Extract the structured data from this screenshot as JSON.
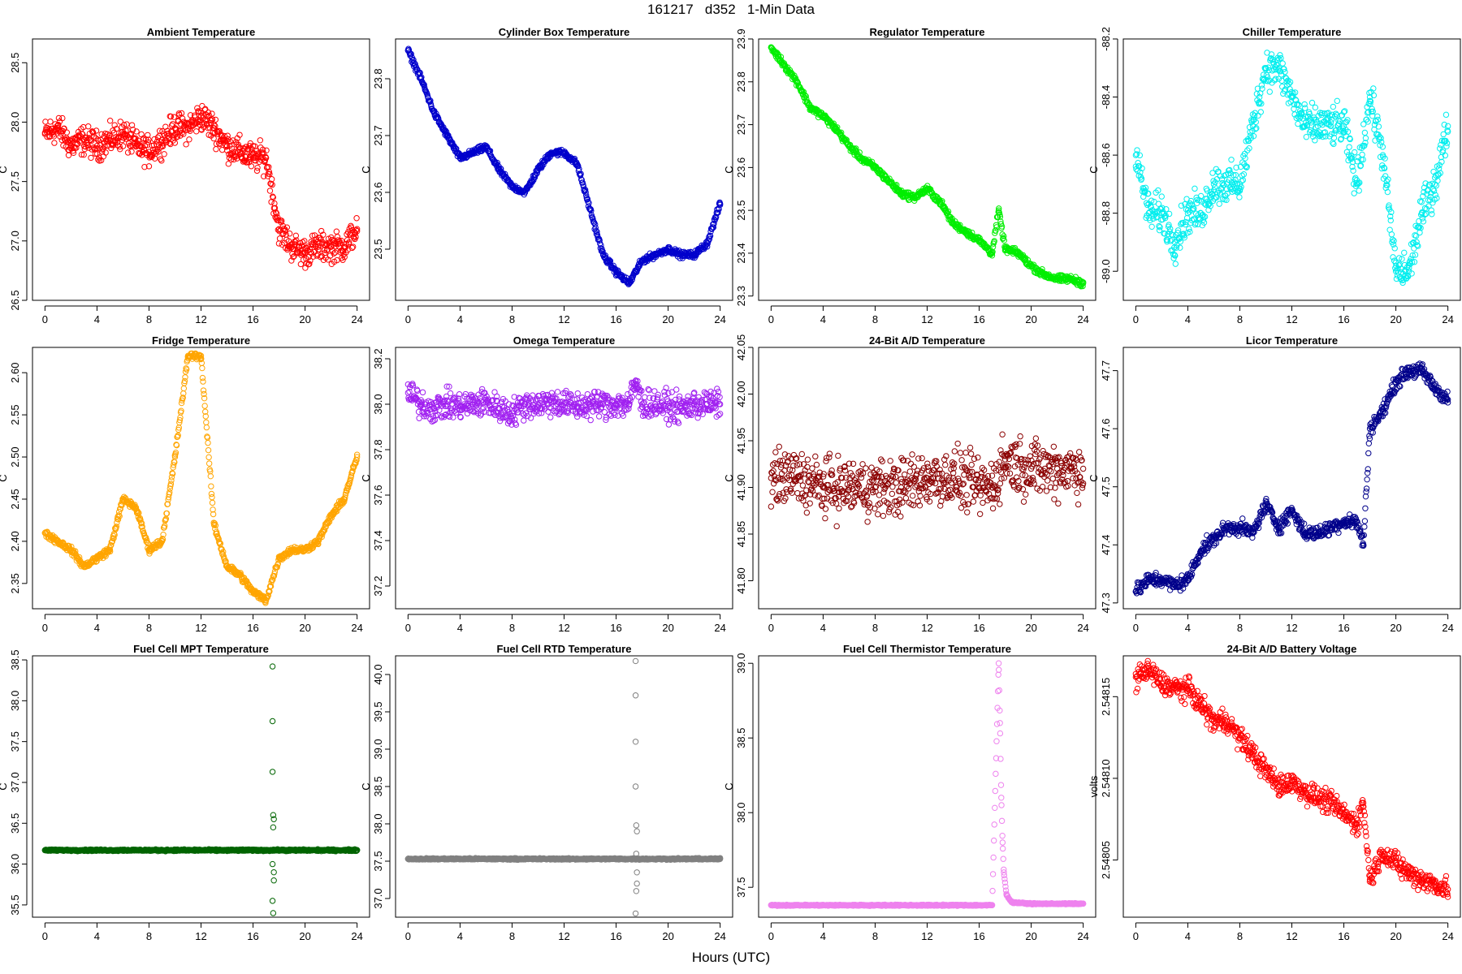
{
  "title": "161217   d352   1-Min Data",
  "common_xlabel": "Hours (UTC)",
  "chart_data": [
    {
      "type": "scatter",
      "title": "Ambient Temperature",
      "ylabel": "C",
      "color": "#ff0000",
      "xlim": [
        0,
        24
      ],
      "xticks": [
        0,
        4,
        8,
        12,
        16,
        20,
        24
      ],
      "ylim": [
        26.5,
        28.7
      ],
      "yticks": [
        26.5,
        27.0,
        27.5,
        28.0,
        28.5
      ],
      "ytick_labels": [
        "26.5",
        "27.0",
        "27.5",
        "28.0",
        "28.5"
      ],
      "x": [
        0,
        1,
        2,
        3,
        4,
        5,
        6,
        7,
        8,
        9,
        10,
        11,
        12,
        13,
        14,
        15,
        16,
        17,
        18,
        19,
        20,
        21,
        22,
        23,
        24
      ],
      "y": [
        27.9,
        27.95,
        27.8,
        27.85,
        27.8,
        27.85,
        27.9,
        27.8,
        27.75,
        27.85,
        27.95,
        27.95,
        28.05,
        27.95,
        27.8,
        27.75,
        27.7,
        27.7,
        27.1,
        26.95,
        26.9,
        26.95,
        26.95,
        26.95,
        27.1
      ],
      "spread": 0.18
    },
    {
      "type": "scatter",
      "title": "Cylinder Box Temperature",
      "ylabel": "C",
      "color": "#0000cc",
      "xlim": [
        0,
        24
      ],
      "xticks": [
        0,
        4,
        8,
        12,
        16,
        20,
        24
      ],
      "ylim": [
        23.41,
        23.87
      ],
      "yticks": [
        23.5,
        23.6,
        23.7,
        23.8
      ],
      "ytick_labels": [
        "23.5",
        "23.6",
        "23.7",
        "23.8"
      ],
      "x": [
        0,
        1,
        2,
        3,
        4,
        5,
        6,
        7,
        8,
        9,
        10,
        11,
        12,
        13,
        14,
        15,
        16,
        17,
        18,
        19,
        20,
        21,
        22,
        23,
        24
      ],
      "y": [
        23.85,
        23.8,
        23.74,
        23.7,
        23.66,
        23.67,
        23.68,
        23.64,
        23.61,
        23.6,
        23.64,
        23.67,
        23.67,
        23.65,
        23.57,
        23.49,
        23.46,
        23.44,
        23.48,
        23.49,
        23.5,
        23.49,
        23.49,
        23.51,
        23.58
      ],
      "spread": 0.008
    },
    {
      "type": "scatter",
      "title": "Regulator Temperature",
      "ylabel": "C",
      "color": "#00ee00",
      "xlim": [
        0,
        24
      ],
      "xticks": [
        0,
        4,
        8,
        12,
        16,
        20,
        24
      ],
      "ylim": [
        23.29,
        23.9
      ],
      "yticks": [
        23.3,
        23.4,
        23.5,
        23.6,
        23.7,
        23.8,
        23.9
      ],
      "ytick_labels": [
        "23.3",
        "23.4",
        "23.5",
        "23.6",
        "23.7",
        "23.8",
        "23.9"
      ],
      "x": [
        0,
        1,
        2,
        3,
        4,
        5,
        6,
        7,
        8,
        9,
        10,
        11,
        12,
        13,
        14,
        15,
        16,
        17,
        17.5,
        18,
        19,
        20,
        21,
        22,
        23,
        24
      ],
      "y": [
        23.88,
        23.84,
        23.8,
        23.74,
        23.72,
        23.69,
        23.65,
        23.62,
        23.6,
        23.57,
        23.54,
        23.53,
        23.55,
        23.52,
        23.47,
        23.45,
        23.43,
        23.4,
        23.5,
        23.41,
        23.4,
        23.37,
        23.35,
        23.34,
        23.34,
        23.33
      ],
      "spread": 0.012
    },
    {
      "type": "scatter",
      "title": "Chiller Temperature",
      "ylabel": "C",
      "color": "#00eeee",
      "xlim": [
        0,
        24
      ],
      "xticks": [
        0,
        4,
        8,
        12,
        16,
        20,
        24
      ],
      "ylim": [
        -89.1,
        -88.2
      ],
      "yticks": [
        -89.0,
        -88.8,
        -88.6,
        -88.4,
        -88.2
      ],
      "ytick_labels": [
        "-89.0",
        "-88.8",
        "-88.6",
        "-88.4",
        "-88.2"
      ],
      "x": [
        0,
        1,
        2,
        3,
        4,
        5,
        6,
        7,
        8,
        9,
        10,
        11,
        12,
        13,
        14,
        15,
        16,
        17,
        18,
        19,
        20,
        21,
        22,
        23,
        24
      ],
      "y": [
        -88.6,
        -88.8,
        -88.8,
        -88.9,
        -88.8,
        -88.8,
        -88.7,
        -88.7,
        -88.7,
        -88.5,
        -88.3,
        -88.3,
        -88.4,
        -88.5,
        -88.5,
        -88.5,
        -88.5,
        -88.7,
        -88.4,
        -88.6,
        -89.0,
        -89.0,
        -88.8,
        -88.7,
        -88.5
      ],
      "spread": 0.1
    },
    {
      "type": "scatter",
      "title": "Fridge Temperature",
      "ylabel": "C",
      "color": "#ffa500",
      "xlim": [
        0,
        24
      ],
      "xticks": [
        0,
        4,
        8,
        12,
        16,
        20,
        24
      ],
      "ylim": [
        2.32,
        2.63
      ],
      "yticks": [
        2.35,
        2.4,
        2.45,
        2.5,
        2.55,
        2.6
      ],
      "ytick_labels": [
        "2.35",
        "2.40",
        "2.45",
        "2.50",
        "2.55",
        "2.60"
      ],
      "x": [
        0,
        1,
        2,
        3,
        4,
        5,
        6,
        7,
        8,
        9,
        10,
        11,
        12,
        13,
        14,
        15,
        16,
        17,
        18,
        19,
        20,
        21,
        22,
        23,
        24
      ],
      "y": [
        2.41,
        2.4,
        2.39,
        2.37,
        2.38,
        2.39,
        2.45,
        2.44,
        2.39,
        2.4,
        2.5,
        2.62,
        2.62,
        2.42,
        2.37,
        2.36,
        2.34,
        2.33,
        2.38,
        2.39,
        2.39,
        2.4,
        2.43,
        2.45,
        2.5
      ],
      "spread": 0.006
    },
    {
      "type": "scatter",
      "title": "Omega Temperature",
      "ylabel": "C",
      "color": "#a020f0",
      "xlim": [
        0,
        24
      ],
      "xticks": [
        0,
        4,
        8,
        12,
        16,
        20,
        24
      ],
      "ylim": [
        37.1,
        38.25
      ],
      "yticks": [
        37.2,
        37.4,
        37.6,
        37.8,
        38.0,
        38.2
      ],
      "ytick_labels": [
        "37.2",
        "37.4",
        "37.6",
        "37.8",
        "38.0",
        "38.2"
      ],
      "x": [
        0,
        1,
        2,
        3,
        4,
        5,
        6,
        7,
        8,
        9,
        10,
        11,
        12,
        13,
        14,
        15,
        16,
        17,
        17.5,
        18,
        19,
        20,
        21,
        22,
        23,
        24
      ],
      "y": [
        38.05,
        38.0,
        37.98,
        38.0,
        37.99,
        38.0,
        38.01,
        37.98,
        37.96,
        38.0,
        38.0,
        38.01,
        38.0,
        37.99,
        38.0,
        38.0,
        38.0,
        38.0,
        38.1,
        38.0,
        38.0,
        37.99,
        37.98,
        38.0,
        38.0,
        38.0
      ],
      "spread": 0.09
    },
    {
      "type": "scatter",
      "title": "24-Bit A/D Temperature",
      "ylabel": "C",
      "color": "#8b0000",
      "xlim": [
        0,
        24
      ],
      "xticks": [
        0,
        4,
        8,
        12,
        16,
        20,
        24
      ],
      "ylim": [
        41.77,
        42.05
      ],
      "yticks": [
        41.8,
        41.85,
        41.9,
        41.95,
        42.0,
        42.05
      ],
      "ytick_labels": [
        "41.80",
        "41.85",
        "41.90",
        "41.95",
        "42.00",
        "42.05"
      ],
      "x": [
        0,
        2,
        4,
        6,
        8,
        10,
        12,
        14,
        16,
        17,
        18,
        20,
        22,
        24
      ],
      "y": [
        41.91,
        41.91,
        41.9,
        41.9,
        41.9,
        41.9,
        41.91,
        41.91,
        41.9,
        41.9,
        41.93,
        41.92,
        41.92,
        41.92
      ],
      "spread": 0.045
    },
    {
      "type": "scatter",
      "title": "Licor Temperature",
      "ylabel": "C",
      "color": "#00008b",
      "xlim": [
        0,
        24
      ],
      "xticks": [
        0,
        4,
        8,
        12,
        16,
        20,
        24
      ],
      "ylim": [
        47.29,
        47.74
      ],
      "yticks": [
        47.3,
        47.4,
        47.5,
        47.6,
        47.7
      ],
      "ytick_labels": [
        "47.3",
        "47.4",
        "47.5",
        "47.6",
        "47.7"
      ],
      "x": [
        0,
        1,
        2,
        3,
        4,
        5,
        6,
        7,
        8,
        9,
        10,
        11,
        12,
        13,
        14,
        15,
        16,
        17,
        17.5,
        18,
        19,
        20,
        21,
        22,
        23,
        24
      ],
      "y": [
        47.32,
        47.34,
        47.34,
        47.33,
        47.34,
        47.39,
        47.41,
        47.43,
        47.43,
        47.42,
        47.47,
        47.43,
        47.46,
        47.42,
        47.42,
        47.43,
        47.44,
        47.44,
        47.4,
        47.6,
        47.63,
        47.68,
        47.7,
        47.7,
        47.67,
        47.65
      ],
      "spread": 0.018
    },
    {
      "type": "scatter",
      "title": "Fuel Cell MPT Temperature",
      "ylabel": "C",
      "color": "#006400",
      "xlim": [
        0,
        24
      ],
      "xticks": [
        0,
        4,
        8,
        12,
        16,
        20,
        24
      ],
      "ylim": [
        35.35,
        38.55
      ],
      "yticks": [
        35.5,
        36.0,
        36.5,
        37.0,
        37.5,
        38.0,
        38.5
      ],
      "ytick_labels": [
        "35.5",
        "36.0",
        "36.5",
        "37.0",
        "37.5",
        "38.0",
        "38.5"
      ],
      "x": [
        0,
        2,
        4,
        6,
        8,
        10,
        12,
        14,
        16,
        17,
        17.4,
        17.6,
        18,
        20,
        22,
        24
      ],
      "y": [
        36.17,
        36.17,
        36.17,
        36.17,
        36.17,
        36.17,
        36.17,
        36.17,
        36.17,
        36.17,
        36.17,
        36.17,
        36.17,
        36.17,
        36.17,
        36.17
      ],
      "spread": 0.015,
      "outliers_x": [
        17.5,
        17.5,
        17.5,
        17.55,
        17.6,
        17.55,
        17.6,
        17.5,
        17.55,
        17.6,
        17.5
      ],
      "outliers_y": [
        38.42,
        37.75,
        37.13,
        36.6,
        36.55,
        36.45,
        35.8,
        35.55,
        35.4,
        35.9,
        36.0
      ]
    },
    {
      "type": "scatter",
      "title": "Fuel Cell RTD Temperature",
      "ylabel": "C",
      "color": "#808080",
      "xlim": [
        0,
        24
      ],
      "xticks": [
        0,
        4,
        8,
        12,
        16,
        20,
        24
      ],
      "ylim": [
        36.75,
        40.25
      ],
      "yticks": [
        37.0,
        37.5,
        38.0,
        38.5,
        39.0,
        39.5,
        40.0
      ],
      "ytick_labels": [
        "37.0",
        "37.5",
        "38.0",
        "38.5",
        "39.0",
        "39.5",
        "40.0"
      ],
      "x": [
        0,
        2,
        4,
        6,
        8,
        10,
        12,
        14,
        16,
        17,
        18,
        20,
        22,
        24
      ],
      "y": [
        37.53,
        37.53,
        37.53,
        37.53,
        37.53,
        37.53,
        37.53,
        37.53,
        37.53,
        37.53,
        37.53,
        37.53,
        37.53,
        37.53
      ],
      "spread": 0.015,
      "outliers_x": [
        17.5,
        17.5,
        17.5,
        17.5,
        17.55,
        17.6,
        17.55,
        17.6,
        17.55,
        17.5,
        17.6
      ],
      "outliers_y": [
        40.18,
        39.72,
        39.1,
        38.5,
        37.98,
        37.9,
        37.6,
        37.2,
        37.1,
        36.8,
        37.35
      ]
    },
    {
      "type": "scatter",
      "title": "Fuel Cell Thermistor Temperature",
      "ylabel": "C",
      "color": "#ee82ee",
      "xlim": [
        0,
        24
      ],
      "xticks": [
        0,
        4,
        8,
        12,
        16,
        20,
        24
      ],
      "ylim": [
        37.3,
        39.05
      ],
      "yticks": [
        37.5,
        38.0,
        38.5,
        39.0
      ],
      "ytick_labels": [
        "37.5",
        "38.0",
        "38.5",
        "39.0"
      ],
      "x": [
        0,
        2,
        4,
        6,
        8,
        10,
        12,
        14,
        16,
        17,
        17.5,
        17.6,
        17.7,
        17.8,
        17.9,
        18.1,
        18.5,
        20,
        22,
        24
      ],
      "y": [
        37.38,
        37.38,
        37.38,
        37.38,
        37.38,
        37.38,
        37.38,
        37.38,
        37.38,
        37.38,
        39.0,
        38.6,
        38.1,
        37.8,
        37.6,
        37.45,
        37.4,
        37.39,
        37.39,
        37.39
      ],
      "spread": 0.006
    },
    {
      "type": "scatter",
      "title": "24-Bit A/D Battery Voltage",
      "ylabel": "volts",
      "color": "#ff0000",
      "xlim": [
        0,
        24
      ],
      "xticks": [
        0,
        4,
        8,
        12,
        16,
        20,
        24
      ],
      "ylim": [
        2.548015,
        2.548175
      ],
      "yticks": [
        2.54805,
        2.5481,
        2.54815
      ],
      "ytick_labels": [
        "2.54805",
        "2.54810",
        "2.54815"
      ],
      "x": [
        0,
        1,
        2,
        3,
        4,
        5,
        6,
        7,
        8,
        9,
        10,
        11,
        12,
        13,
        14,
        15,
        16,
        17,
        17.5,
        18,
        19,
        20,
        21,
        22,
        23,
        24
      ],
      "y": [
        2.548162,
        2.548166,
        2.548158,
        2.548155,
        2.548155,
        2.548145,
        2.548135,
        2.548135,
        2.548125,
        2.548115,
        2.548105,
        2.548095,
        2.548098,
        2.548092,
        2.548088,
        2.548085,
        2.548078,
        2.548072,
        2.548085,
        2.548038,
        2.548055,
        2.548048,
        2.548042,
        2.548038,
        2.548035,
        2.548032
      ],
      "spread": 1e-05
    }
  ]
}
